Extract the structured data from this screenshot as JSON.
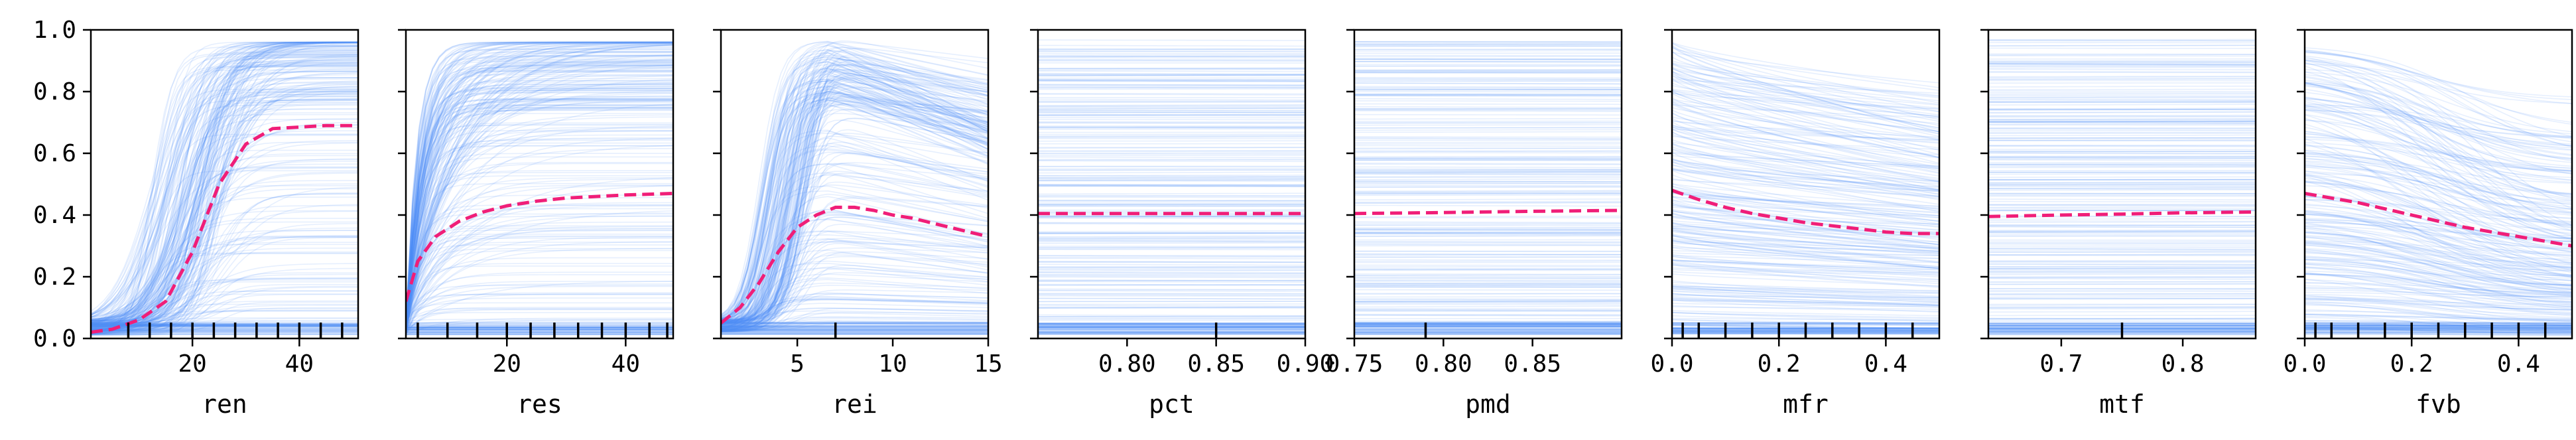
{
  "colors": {
    "ice": "#4d8df5",
    "average": "#f01e78",
    "axis": "#000000",
    "rug": "#000000",
    "background": "#ffffff"
  },
  "shared_y": {
    "ylim": [
      0.0,
      1.0
    ],
    "ticks": [
      0.0,
      0.2,
      0.4,
      0.6,
      0.8,
      1.0
    ],
    "tick_labels": [
      "0.0",
      "0.2",
      "0.4",
      "0.6",
      "0.8",
      "1.0"
    ]
  },
  "chart_data": [
    {
      "type": "line",
      "xlabel": "ren",
      "xlim": [
        1,
        51
      ],
      "xticks": [
        20,
        40
      ],
      "xtick_labels": [
        "20",
        "40"
      ],
      "rug": [
        8,
        12,
        16,
        20,
        24,
        28,
        32,
        36,
        40,
        44,
        48
      ],
      "ice_shape": "sigmoid",
      "series": [
        {
          "kind": "average",
          "x": [
            1,
            5,
            10,
            15,
            20,
            25,
            30,
            35,
            40,
            45,
            51
          ],
          "y": [
            0.02,
            0.03,
            0.06,
            0.12,
            0.28,
            0.5,
            0.63,
            0.68,
            0.685,
            0.69,
            0.69
          ]
        }
      ]
    },
    {
      "type": "line",
      "xlabel": "res",
      "xlim": [
        3,
        48
      ],
      "xticks": [
        20,
        40
      ],
      "xtick_labels": [
        "20",
        "40"
      ],
      "rug": [
        5,
        10,
        15,
        20,
        24,
        28,
        32,
        36,
        40,
        44,
        47
      ],
      "ice_shape": "saturating",
      "series": [
        {
          "kind": "average",
          "x": [
            3,
            5,
            8,
            12,
            16,
            20,
            25,
            30,
            35,
            40,
            48
          ],
          "y": [
            0.12,
            0.25,
            0.33,
            0.38,
            0.41,
            0.43,
            0.445,
            0.455,
            0.46,
            0.465,
            0.47
          ]
        }
      ]
    },
    {
      "type": "line",
      "xlabel": "rei",
      "xlim": [
        1,
        15
      ],
      "xticks": [
        5,
        10,
        15
      ],
      "xtick_labels": [
        "5",
        "10",
        "15"
      ],
      "rug": [
        7
      ],
      "ice_shape": "peak",
      "series": [
        {
          "kind": "average",
          "x": [
            1,
            2,
            3,
            4,
            5,
            6,
            7,
            8,
            9,
            10,
            11,
            12,
            13,
            14,
            15
          ],
          "y": [
            0.05,
            0.1,
            0.18,
            0.28,
            0.36,
            0.4,
            0.425,
            0.425,
            0.415,
            0.4,
            0.39,
            0.375,
            0.36,
            0.345,
            0.33
          ]
        }
      ]
    },
    {
      "type": "line",
      "xlabel": "pct",
      "xlim": [
        0.75,
        0.9
      ],
      "xticks": [
        0.8,
        0.85,
        0.9
      ],
      "xtick_labels": [
        "0.80",
        "0.85",
        "0.90"
      ],
      "rug": [
        0.85
      ],
      "ice_shape": "flat",
      "series": [
        {
          "kind": "average",
          "x": [
            0.75,
            0.8,
            0.85,
            0.9
          ],
          "y": [
            0.405,
            0.405,
            0.405,
            0.405
          ]
        }
      ]
    },
    {
      "type": "line",
      "xlabel": "pmd",
      "xlim": [
        0.75,
        0.9
      ],
      "xticks": [
        0.75,
        0.8,
        0.85
      ],
      "xtick_labels": [
        "0.75",
        "0.80",
        "0.85"
      ],
      "rug": [
        0.79
      ],
      "ice_shape": "flat",
      "series": [
        {
          "kind": "average",
          "x": [
            0.75,
            0.8,
            0.85,
            0.9
          ],
          "y": [
            0.405,
            0.408,
            0.412,
            0.415
          ]
        }
      ]
    },
    {
      "type": "line",
      "xlabel": "mfr",
      "xlim": [
        0.0,
        0.5
      ],
      "xticks": [
        0.0,
        0.2,
        0.4
      ],
      "xtick_labels": [
        "0.0",
        "0.2",
        "0.4"
      ],
      "rug": [
        0.02,
        0.05,
        0.1,
        0.15,
        0.2,
        0.25,
        0.3,
        0.35,
        0.4,
        0.45
      ],
      "ice_shape": "decline",
      "series": [
        {
          "kind": "average",
          "x": [
            0.0,
            0.05,
            0.1,
            0.15,
            0.2,
            0.25,
            0.3,
            0.35,
            0.4,
            0.45,
            0.5
          ],
          "y": [
            0.48,
            0.45,
            0.425,
            0.405,
            0.39,
            0.375,
            0.365,
            0.355,
            0.345,
            0.34,
            0.34
          ]
        }
      ]
    },
    {
      "type": "line",
      "xlabel": "mtf",
      "xlim": [
        0.64,
        0.86
      ],
      "xticks": [
        0.7,
        0.8
      ],
      "xtick_labels": [
        "0.7",
        "0.8"
      ],
      "rug": [
        0.75
      ],
      "ice_shape": "flat",
      "series": [
        {
          "kind": "average",
          "x": [
            0.64,
            0.7,
            0.75,
            0.8,
            0.86
          ],
          "y": [
            0.395,
            0.4,
            0.403,
            0.407,
            0.41
          ]
        }
      ]
    },
    {
      "type": "line",
      "xlabel": "fvb",
      "xlim": [
        0.0,
        0.5
      ],
      "xticks": [
        0.0,
        0.2,
        0.4
      ],
      "xtick_labels": [
        "0.0",
        "0.2",
        "0.4"
      ],
      "rug": [
        0.02,
        0.05,
        0.1,
        0.15,
        0.2,
        0.25,
        0.3,
        0.35,
        0.4,
        0.45
      ],
      "ice_shape": "decline-steep",
      "series": [
        {
          "kind": "average",
          "x": [
            0.0,
            0.1,
            0.2,
            0.3,
            0.4,
            0.5
          ],
          "y": [
            0.47,
            0.44,
            0.4,
            0.36,
            0.33,
            0.3
          ]
        }
      ]
    }
  ]
}
